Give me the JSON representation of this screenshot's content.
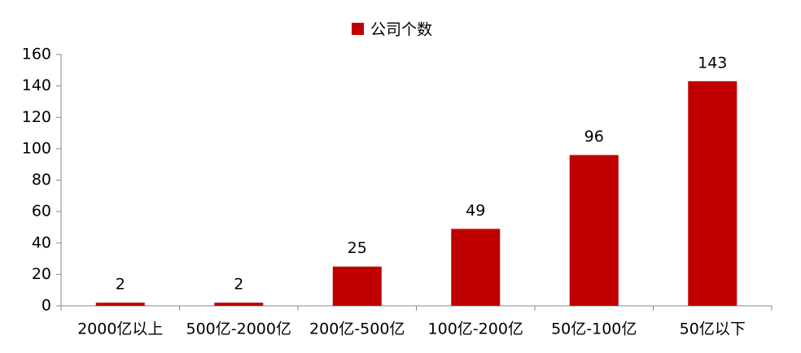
{
  "chart_data": {
    "type": "bar",
    "categories": [
      "2000亿以上",
      "500亿-2000亿",
      "200亿-500亿",
      "100亿-200亿",
      "50亿-100亿",
      "50亿以下"
    ],
    "series": [
      {
        "name": "公司个数",
        "color": "#c00000",
        "values": [
          2,
          2,
          25,
          49,
          96,
          143
        ]
      }
    ],
    "ylim": [
      0,
      160
    ],
    "yticks": [
      0,
      20,
      40,
      60,
      80,
      100,
      120,
      140,
      160
    ],
    "legend": "top",
    "data_labels": true
  }
}
